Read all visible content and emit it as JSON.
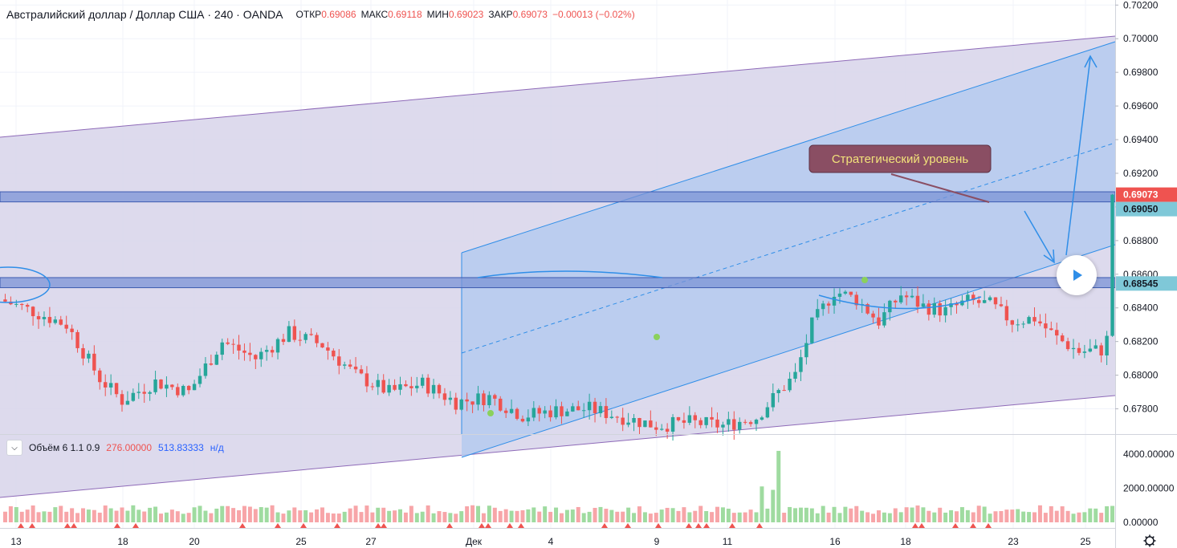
{
  "header": {
    "title": "Австралийский доллар / Доллар США · 240 · OANDA",
    "open_label": "ОТКР",
    "open": "0.69086",
    "high_label": "МАКС",
    "high": "0.69118",
    "low_label": "МИН",
    "low": "0.69023",
    "close_label": "ЗАКР",
    "close": "0.69073",
    "change": "−0.00013 (−0.02%)"
  },
  "volume_legend": {
    "name": "Объём 6 1.1 0.9",
    "v1": "276.00000",
    "v2": "513.83333",
    "v3": "н/д"
  },
  "annotation": {
    "text": "Стратегический уровень"
  },
  "colors": {
    "up": "#26a69a",
    "down": "#ef5350",
    "up_vol": "#9fdba0",
    "down_vol": "#f7a5a8",
    "channel_fill": "#d7d3ea",
    "inner_fill": "#b3c9ef",
    "level_fill": "#7b93d6",
    "line_blue": "#2f8ee8",
    "label_bg": "#8a4e63",
    "label_text": "#f2e27a"
  },
  "chart_data": {
    "type": "candlestick",
    "symbol": "AUDUSD",
    "interval": "240",
    "y_range": [
      0.6765,
      0.7023
    ],
    "y_ticks": [
      "0.70200",
      "0.70000",
      "0.69800",
      "0.69600",
      "0.69400",
      "0.69200",
      "0.69000",
      "0.68800",
      "0.68600",
      "0.68400",
      "0.68200",
      "0.68000",
      "0.67800"
    ],
    "price_labels": [
      {
        "text": "0.69073",
        "value": 0.69073,
        "color": "#ef5350"
      },
      {
        "text": "0.69050",
        "value": 0.6905,
        "color": "#7fc8d8"
      },
      {
        "text": "0.68545",
        "value": 0.68545,
        "color": "#7fc8d8"
      }
    ],
    "levels": [
      {
        "from": 0.6903,
        "to": 0.6909
      },
      {
        "from": 0.6852,
        "to": 0.6858
      }
    ],
    "x_labels": [
      "13",
      "18",
      "20",
      "25",
      "27",
      "Дек",
      "4",
      "9",
      "11",
      "16",
      "18",
      "23",
      "25"
    ],
    "volume_ticks": [
      "4000.00000",
      "2000.00000",
      "0.00000"
    ],
    "volume_range": [
      0,
      4600
    ],
    "bars": 200,
    "path": [
      [
        0,
        0.6845
      ],
      [
        6,
        0.6838
      ],
      [
        12,
        0.683
      ],
      [
        18,
        0.6798
      ],
      [
        22,
        0.6785
      ],
      [
        28,
        0.6796
      ],
      [
        34,
        0.679
      ],
      [
        40,
        0.682
      ],
      [
        46,
        0.681
      ],
      [
        52,
        0.6825
      ],
      [
        58,
        0.6818
      ],
      [
        64,
        0.68
      ],
      [
        70,
        0.679
      ],
      [
        76,
        0.6795
      ],
      [
        82,
        0.6784
      ],
      [
        88,
        0.6787
      ],
      [
        94,
        0.6776
      ],
      [
        100,
        0.6779
      ],
      [
        106,
        0.678
      ],
      [
        112,
        0.6775
      ],
      [
        118,
        0.677
      ],
      [
        124,
        0.6772
      ],
      [
        130,
        0.677
      ],
      [
        136,
        0.6775
      ],
      [
        140,
        0.679
      ],
      [
        143,
        0.68
      ],
      [
        146,
        0.683
      ],
      [
        150,
        0.685
      ],
      [
        154,
        0.6845
      ],
      [
        158,
        0.6832
      ],
      [
        162,
        0.6848
      ],
      [
        166,
        0.6841
      ],
      [
        170,
        0.6838
      ],
      [
        174,
        0.6844
      ],
      [
        178,
        0.6842
      ],
      [
        182,
        0.6832
      ],
      [
        186,
        0.6834
      ],
      [
        190,
        0.6822
      ],
      [
        194,
        0.6814
      ],
      [
        198,
        0.6815
      ],
      [
        202,
        0.684
      ],
      [
        206,
        0.687
      ],
      [
        210,
        0.6895
      ],
      [
        214,
        0.6905
      ],
      [
        218,
        0.6925
      ],
      [
        222,
        0.6912
      ],
      [
        226,
        0.6908
      ],
      [
        229,
        0.687
      ],
      [
        233,
        0.6878
      ],
      [
        237,
        0.6888
      ],
      [
        241,
        0.6872
      ],
      [
        245,
        0.686
      ],
      [
        249,
        0.6848
      ],
      [
        253,
        0.6842
      ],
      [
        257,
        0.685
      ],
      [
        261,
        0.6858
      ],
      [
        265,
        0.687
      ],
      [
        269,
        0.688
      ],
      [
        273,
        0.6875
      ],
      [
        277,
        0.689
      ],
      [
        281,
        0.6897
      ],
      [
        285,
        0.6903
      ],
      [
        288,
        0.6907
      ]
    ]
  }
}
